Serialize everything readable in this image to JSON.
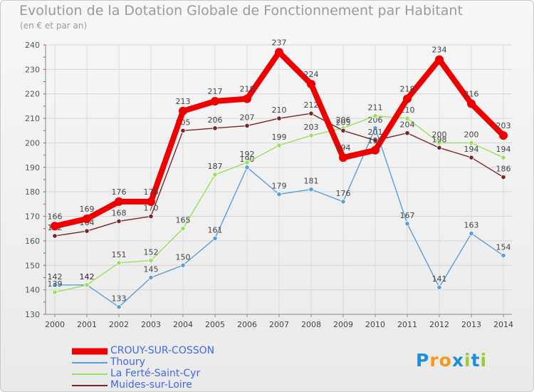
{
  "chart_data": {
    "type": "line",
    "title": "Evolution de la Dotation Globale de Fonctionnement par Habitant",
    "subtitle": "(en € et par an)",
    "xlabel": "",
    "ylabel": "",
    "ylim": [
      130,
      240
    ],
    "yticks": [
      130,
      140,
      150,
      160,
      170,
      180,
      190,
      200,
      210,
      220,
      230,
      240
    ],
    "x": [
      "2000",
      "2001",
      "2002",
      "2003",
      "2004",
      "2005",
      "2006",
      "2007",
      "2008",
      "2009",
      "2010",
      "2011",
      "2012",
      "2013",
      "2014"
    ],
    "grid": true,
    "legend_position": "bottom-left",
    "series": [
      {
        "name": "Thoury",
        "color": "#5b9ed6",
        "values": [
          142,
          142,
          133,
          145,
          150,
          161,
          190,
          179,
          181,
          176,
          206,
          167,
          141,
          163,
          154
        ]
      },
      {
        "name": "La Ferté-Saint-Cyr",
        "color": "#99e05a",
        "values": [
          139,
          142,
          151,
          152,
          165,
          187,
          192,
          199,
          203,
          206,
          211,
          210,
          200,
          200,
          194
        ]
      },
      {
        "name": "Muides-sur-Loire",
        "color": "#7a2525",
        "values": [
          162,
          164,
          168,
          170,
          205,
          206,
          207,
          210,
          212,
          205,
          201,
          204,
          198,
          194,
          186
        ]
      },
      {
        "name": "CROUY-SUR-COSSON",
        "color": "#ee0000",
        "values": [
          166,
          169,
          176,
          176,
          213,
          217,
          218,
          237,
          224,
          194,
          197,
          218,
          234,
          216,
          203
        ]
      }
    ]
  },
  "legend": [
    {
      "label": "CROUY-SUR-COSSON",
      "color": "#ee0000",
      "text_color": "#4169e1"
    },
    {
      "label": "Thoury",
      "color": "#5b9ed6",
      "text_color": "#4169e1"
    },
    {
      "label": "La Ferté-Saint-Cyr",
      "color": "#99e05a",
      "text_color": "#4169e1"
    },
    {
      "label": "Muides-sur-Loire",
      "color": "#7a2525",
      "text_color": "#4169e1"
    }
  ],
  "logo": {
    "letters": [
      "P",
      "r",
      "o",
      "x",
      "i",
      "t",
      "i"
    ],
    "colors": [
      "#1f8fd6",
      "#f39a1c",
      "#f39a1c",
      "#1f8fd6",
      "#9acd32",
      "#1f8fd6",
      "#9acd32"
    ]
  }
}
